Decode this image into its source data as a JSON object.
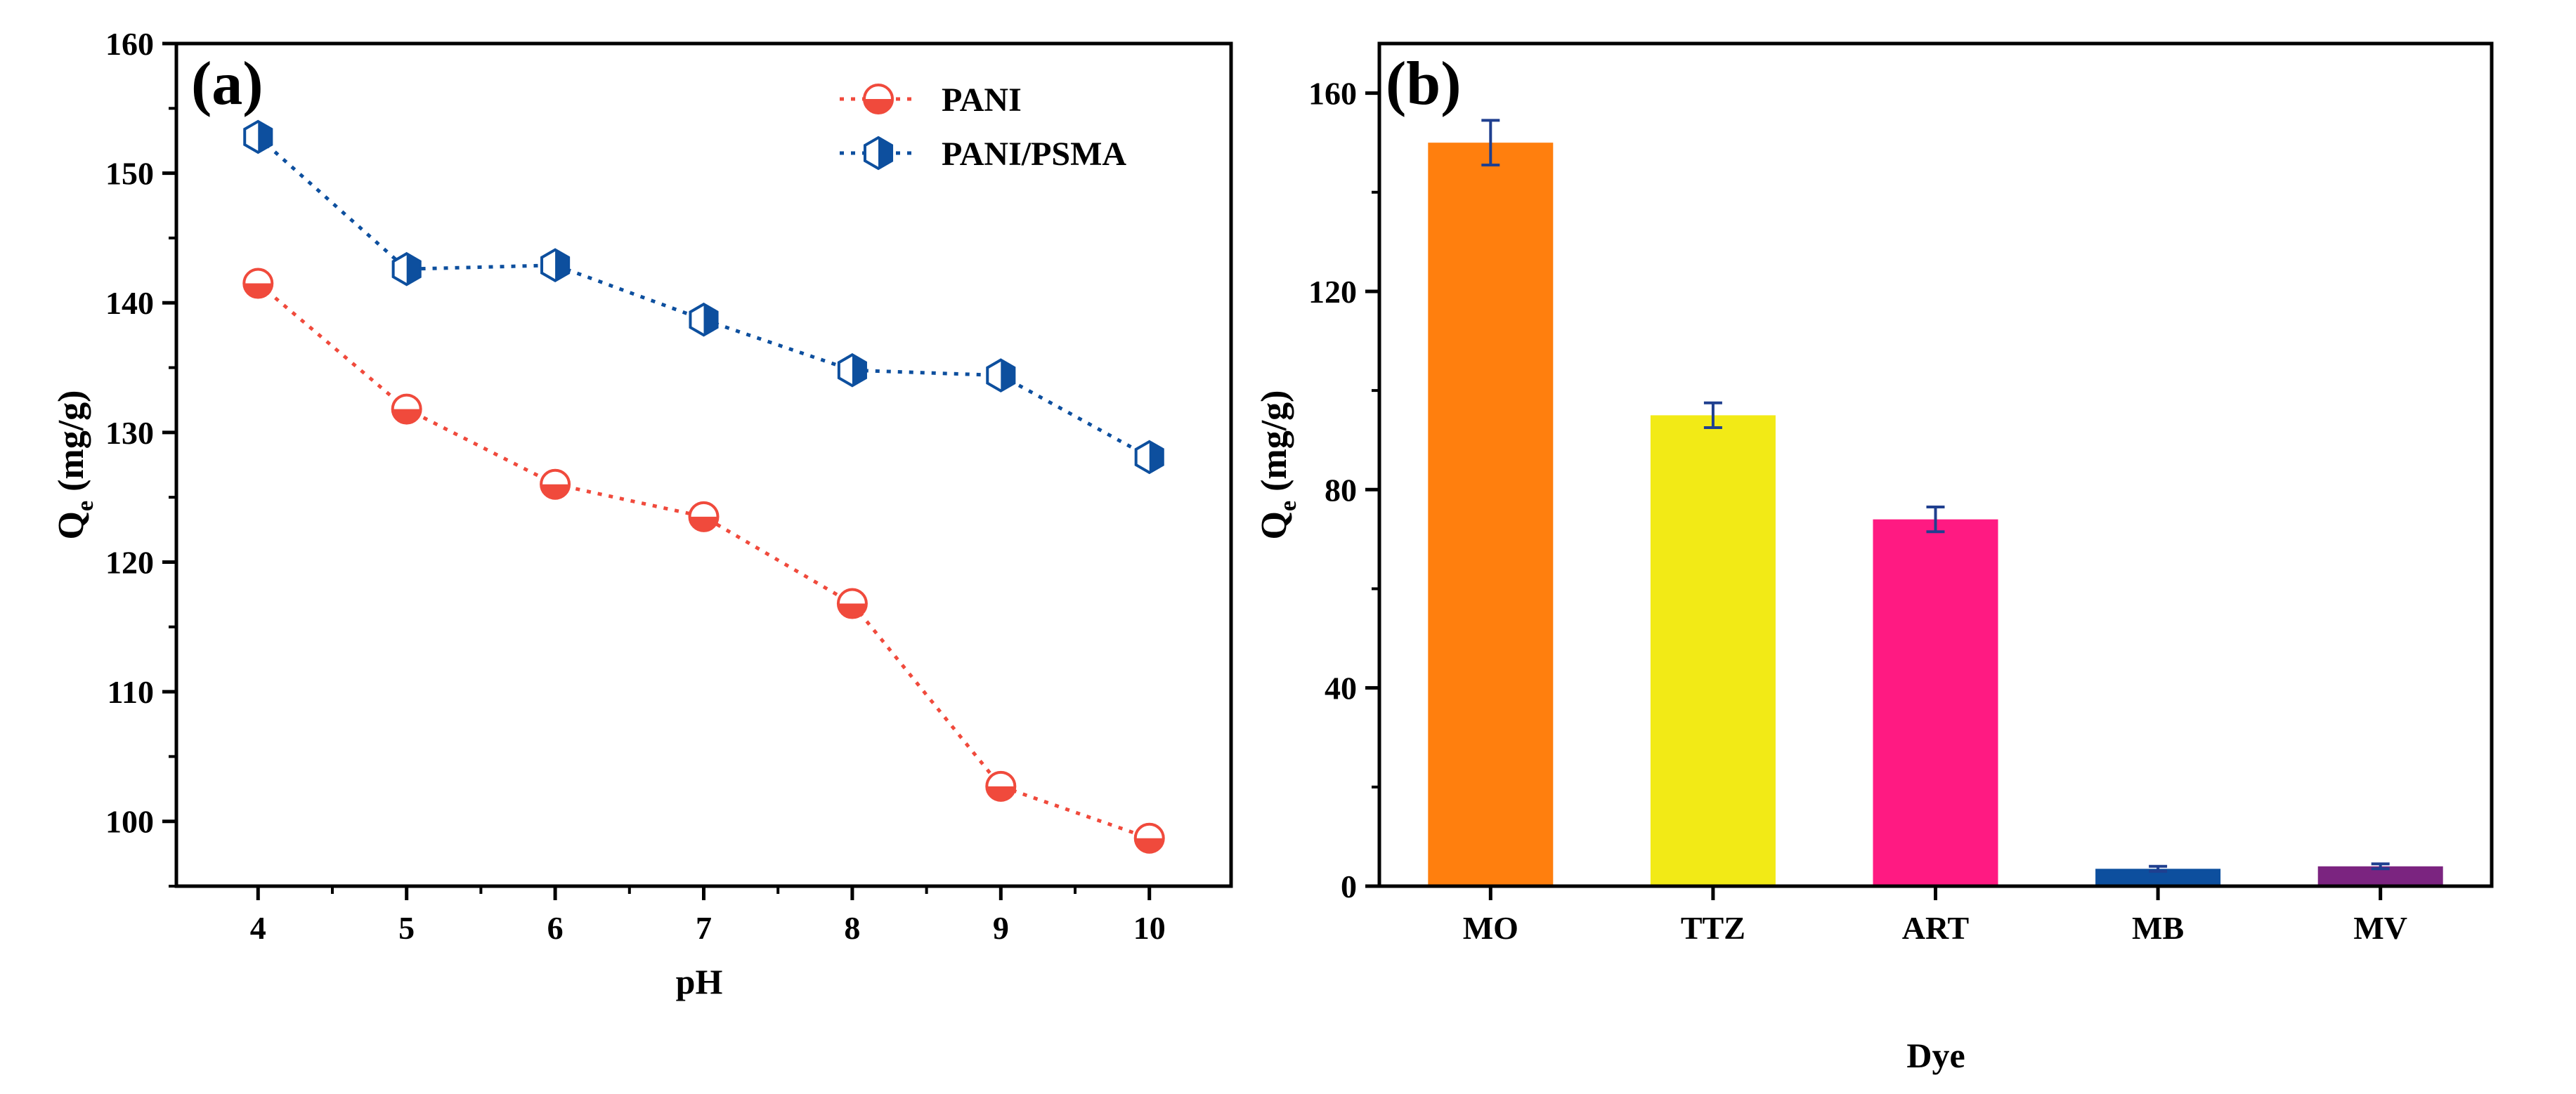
{
  "chart_data": [
    {
      "type": "line",
      "panel_label": "(a)",
      "xlabel": "pH",
      "ylabel": "Q",
      "ylabel_subscript": "e",
      "ylabel_unit": "(mg/g)",
      "x": [
        4,
        5,
        6,
        7,
        8,
        9,
        10
      ],
      "xlim": [
        3.45,
        10.55
      ],
      "ylim": [
        95,
        160
      ],
      "xticks": [
        "4",
        "5",
        "6",
        "7",
        "8",
        "9",
        "10"
      ],
      "yticks": [
        "100",
        "110",
        "120",
        "130",
        "140",
        "150",
        "160"
      ],
      "legend_position": "top-right",
      "series": [
        {
          "name": "PANI",
          "values": [
            141.5,
            131.8,
            126.0,
            123.5,
            116.8,
            102.7,
            98.7
          ],
          "color": "#f04a3c",
          "marker": "half-circle"
        },
        {
          "name": "PANI/PSMA",
          "values": [
            152.8,
            142.6,
            142.9,
            138.7,
            134.8,
            134.4,
            128.1
          ],
          "color": "#0d4f9e",
          "marker": "half-hexagon"
        }
      ]
    },
    {
      "type": "bar",
      "panel_label": "(b)",
      "xlabel": "Dye",
      "ylabel": "Q",
      "ylabel_subscript": "e",
      "ylabel_unit": "(mg/g)",
      "categories": [
        "MO",
        "TTZ",
        "ART",
        "MB",
        "MV"
      ],
      "values": [
        150.0,
        95.0,
        74.0,
        3.5,
        4.0
      ],
      "errors": [
        4.5,
        2.5,
        2.5,
        0.5,
        0.5
      ],
      "colors": [
        "#ff7f0e",
        "#f2ea16",
        "#ff1a82",
        "#0d4f9e",
        "#7b2480"
      ],
      "error_color": "#1f3f8f",
      "ylim": [
        0,
        170
      ],
      "yticks": [
        "0",
        "40",
        "80",
        "120",
        "160"
      ]
    }
  ]
}
